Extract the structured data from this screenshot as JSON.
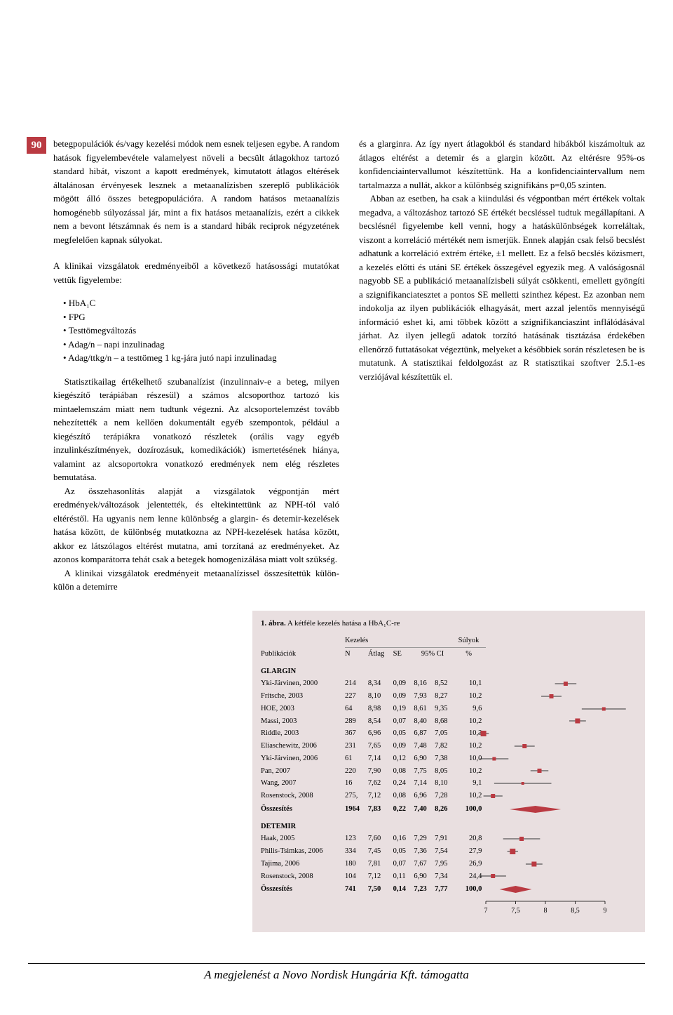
{
  "page_number": "90",
  "left_column": {
    "p1": "betegpopulációk és/vagy kezelési módok nem esnek teljesen egybe. A random hatások figyelembevétele valamelyest növeli a becsült átlagokhoz tartozó standard hibát, viszont a kapott eredmények, kimutatott átlagos eltérések általánosan érvényesek lesznek a metaanalízisben szereplő publikációk mögött álló összes betegpopulációra. A random hatásos metaanalízis homogénebb súlyozással jár, mint a fix hatásos metaanalízis, ezért a cikkek nem a bevont létszámnak és nem is a standard hibák reciprok négyzetének megfelelően kapnak súlyokat.",
    "p2": "A klinikai vizsgálatok eredményeiből a következő hatásossági mutatókat vettük figyelembe:",
    "bullets": [
      "HbA₁C",
      "FPG",
      "Testtömegváltozás",
      "Adag/n – napi inzulinadag",
      "Adag/ttkg/n – a testtömeg 1 kg-jára jutó napi inzulinadag"
    ],
    "p3": "Statisztikailag értékelhető szubanalízist (inzulinnaiv-e a beteg, milyen kiegészítő terápiában részesül) a számos alcsoporthoz tartozó kis mintaelemszám miatt nem tudtunk végezni. Az alcsoportelemzést tovább nehezítették a nem kellően dokumentált egyéb szempontok, például a kiegészítő terápiákra vonatkozó részletek (orális vagy egyéb inzulinkészítmények, dozírozásuk, komedikációk) ismertetésének hiánya, valamint az alcsoportokra vonatkozó eredmények nem elég részletes bemutatása.",
    "p4": "Az összehasonlítás alapját a vizsgálatok végpontján mért eredmények/változások jelentették, és eltekintettünk az NPH-tól való eltéréstől. Ha ugyanis nem lenne különbség a glargin- és detemir-kezelések hatása között, de különbség mutatkozna az NPH-kezelések hatása között, akkor ez látszólagos eltérést mutatna, ami torzítaná az eredményeket. Az azonos komparátorra tehát csak a betegek homogenizálása miatt volt szükség.",
    "p5": "A klinikai vizsgálatok eredményeit metaanalízissel összesítettük külön-külön a detemirre"
  },
  "right_column": {
    "p1": "és a glarginra. Az így nyert átlagokból és standard hibákból kiszámoltuk az átlagos eltérést a detemir és a glargin között. Az eltérésre 95%-os konfidenciaintervallumot készítettünk. Ha a konfidenciaintervallum nem tartalmazza a nullát, akkor a különbség szignifikáns p=0,05 szinten.",
    "p2": "Abban az esetben, ha csak a kiindulási és végpontban mért értékek voltak megadva, a változáshoz tartozó SE értékét becsléssel tudtuk megállapítani. A becslésnél figyelembe kell venni, hogy a hatáskülönbségek korreláltak, viszont a korreláció mértékét nem ismerjük. Ennek alapján csak felső becslést adhatunk a korreláció extrém értéke, ±1 mellett. Ez a felső becslés közismert, a kezelés előtti és utáni SE értékek összegével egyezik meg. A valóságosnál nagyobb SE a publikáció metaanalízisbeli súlyát csökkenti, emellett gyöngíti a szignifikanciatesztet a pontos SE melletti szinthez képest. Ez azonban nem indokolja az ilyen publikációk elhagyását, mert azzal jelentős mennyiségű információ eshet ki, ami többek között a szignifikanciaszint inflálódásával járhat. Az ilyen jellegű adatok torzító hatásának tisztázása érdekében ellenőrző futtatásokat végeztünk, melyeket a későbbiek során részletesen be is mutatunk. A statisztikai feldolgozást az R statisztikai szoftver 2.5.1-es verziójával készítettük el."
  },
  "figure": {
    "title_label": "1. ábra.",
    "title_text": "A kétféle kezelés hatása a HbA₁C-re",
    "headers": {
      "pub": "Publikációk",
      "kezeles": "Kezelés",
      "sulyok": "Súlyok",
      "n": "N",
      "atlag": "Átlag",
      "se": "SE",
      "ci": "95% CI",
      "pct": "%"
    },
    "group1_label": "GLARGIN",
    "group2_label": "DETEMIR",
    "summary_label": "Összesítés",
    "axis": {
      "min": 7.0,
      "max": 9.0,
      "ticks": [
        "7",
        "7,5",
        "8",
        "8,5",
        "9"
      ]
    },
    "marker_color": "#ba3a42",
    "line_color": "#333333",
    "group1": [
      {
        "pub": "Yki-Järvinen, 2000",
        "n": "214",
        "mean": "8,34",
        "se": "0,09",
        "lo": "8,16",
        "hi": "8,52",
        "pct": "10,1",
        "m": 8.34,
        "l": 8.16,
        "h": 8.52,
        "sz": 6
      },
      {
        "pub": "Fritsche, 2003",
        "n": "227",
        "mean": "8,10",
        "se": "0,09",
        "lo": "7,93",
        "hi": "8,27",
        "pct": "10,2",
        "m": 8.1,
        "l": 7.93,
        "h": 8.27,
        "sz": 6
      },
      {
        "pub": "HOE, 2003",
        "n": "64",
        "mean": "8,98",
        "se": "0,19",
        "lo": "8,61",
        "hi": "9,35",
        "pct": "9,6",
        "m": 8.98,
        "l": 8.61,
        "h": 9.35,
        "sz": 5
      },
      {
        "pub": "Massi, 2003",
        "n": "289",
        "mean": "8,54",
        "se": "0,07",
        "lo": "8,40",
        "hi": "8,68",
        "pct": "10,2",
        "m": 8.54,
        "l": 8.4,
        "h": 8.68,
        "sz": 7
      },
      {
        "pub": "Riddle, 2003",
        "n": "367",
        "mean": "6,96",
        "se": "0,05",
        "lo": "6,87",
        "hi": "7,05",
        "pct": "10,3",
        "m": 6.96,
        "l": 6.87,
        "h": 7.05,
        "sz": 8
      },
      {
        "pub": "Eliaschewitz, 2006",
        "n": "231",
        "mean": "7,65",
        "se": "0,09",
        "lo": "7,48",
        "hi": "7,82",
        "pct": "10,2",
        "m": 7.65,
        "l": 7.48,
        "h": 7.82,
        "sz": 6
      },
      {
        "pub": "Yki-Järvinen, 2006",
        "n": "61",
        "mean": "7,14",
        "se": "0,12",
        "lo": "6,90",
        "hi": "7,38",
        "pct": "10,0",
        "m": 7.14,
        "l": 6.9,
        "h": 7.38,
        "sz": 5
      },
      {
        "pub": "Pan, 2007",
        "n": "220",
        "mean": "7,90",
        "se": "0,08",
        "lo": "7,75",
        "hi": "8,05",
        "pct": "10,2",
        "m": 7.9,
        "l": 7.75,
        "h": 8.05,
        "sz": 6
      },
      {
        "pub": "Wang, 2007",
        "n": "16",
        "mean": "7,62",
        "se": "0,24",
        "lo": "7,14",
        "hi": "8,10",
        "pct": "9,1",
        "m": 7.62,
        "l": 7.14,
        "h": 8.1,
        "sz": 4
      },
      {
        "pub": "Rosenstock, 2008",
        "n": "275,",
        "mean": "7,12",
        "se": "0,08",
        "lo": "6,96",
        "hi": "7,28",
        "pct": "10,2",
        "m": 7.12,
        "l": 6.96,
        "h": 7.28,
        "sz": 6
      }
    ],
    "group1_summary": {
      "n": "1964",
      "mean": "7,83",
      "se": "0,22",
      "lo": "7,40",
      "hi": "8,26",
      "pct": "100,0",
      "m": 7.83,
      "l": 7.4,
      "h": 8.26
    },
    "group2": [
      {
        "pub": "Haak, 2005",
        "n": "123",
        "mean": "7,60",
        "se": "0,16",
        "lo": "7,29",
        "hi": "7,91",
        "pct": "20,8",
        "m": 7.6,
        "l": 7.29,
        "h": 7.91,
        "sz": 6
      },
      {
        "pub": "Philis-Tsimkas, 2006",
        "n": "334",
        "mean": "7,45",
        "se": "0,05",
        "lo": "7,36",
        "hi": "7,54",
        "pct": "27,9",
        "m": 7.45,
        "l": 7.36,
        "h": 7.54,
        "sz": 8
      },
      {
        "pub": "Tajima, 2006",
        "n": "180",
        "mean": "7,81",
        "se": "0,07",
        "lo": "7,67",
        "hi": "7,95",
        "pct": "26,9",
        "m": 7.81,
        "l": 7.67,
        "h": 7.95,
        "sz": 7
      },
      {
        "pub": "Rosenstock, 2008",
        "n": "104",
        "mean": "7,12",
        "se": "0,11",
        "lo": "6,90",
        "hi": "7,34",
        "pct": "24,4",
        "m": 7.12,
        "l": 6.9,
        "h": 7.34,
        "sz": 6
      }
    ],
    "group2_summary": {
      "n": "741",
      "mean": "7,50",
      "se": "0,14",
      "lo": "7,23",
      "hi": "7,77",
      "pct": "100,0",
      "m": 7.5,
      "l": 7.23,
      "h": 7.77
    }
  },
  "footer": "A megjelenést a Novo Nordisk Hungária Kft. támogatta"
}
